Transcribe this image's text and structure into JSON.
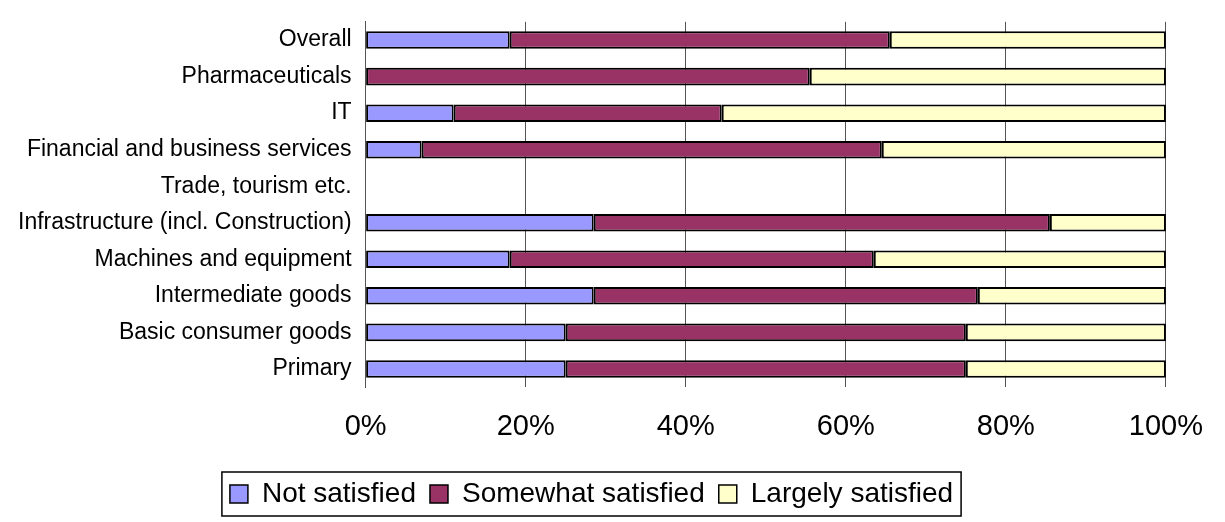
{
  "chart_data": {
    "type": "bar",
    "orientation": "horizontal",
    "stacked": true,
    "categories": [
      "Overall",
      "Pharmaceuticals",
      "IT",
      "Financial and business services",
      "Trade, tourism etc.",
      "Infrastructure (incl. Construction)",
      "Machines and equipment",
      "Intermediate goods",
      "Basic consumer goods",
      "Primary"
    ],
    "series": [
      {
        "name": "Not satisfied",
        "color": "#9999ff",
        "values": [
          18,
          0,
          11,
          7,
          null,
          28.5,
          18,
          28.5,
          25,
          25
        ]
      },
      {
        "name": "Somewhat satisfied",
        "color": "#993366",
        "values": [
          47.5,
          55.5,
          33.5,
          57.5,
          null,
          57,
          45.5,
          48,
          50,
          50
        ]
      },
      {
        "name": "Largely satisfied",
        "color": "#ffffcc",
        "values": [
          34.5,
          44.5,
          55.5,
          35.5,
          null,
          14.5,
          36.5,
          23.5,
          25,
          25
        ]
      }
    ],
    "xlim": [
      0,
      100
    ],
    "xticks": [
      {
        "value": 0,
        "label": "0%"
      },
      {
        "value": 20,
        "label": "20%"
      },
      {
        "value": 40,
        "label": "40%"
      },
      {
        "value": 60,
        "label": "60%"
      },
      {
        "value": 80,
        "label": "80%"
      },
      {
        "value": 100,
        "label": "100%"
      }
    ],
    "grid": "x",
    "legend": "bottom"
  }
}
